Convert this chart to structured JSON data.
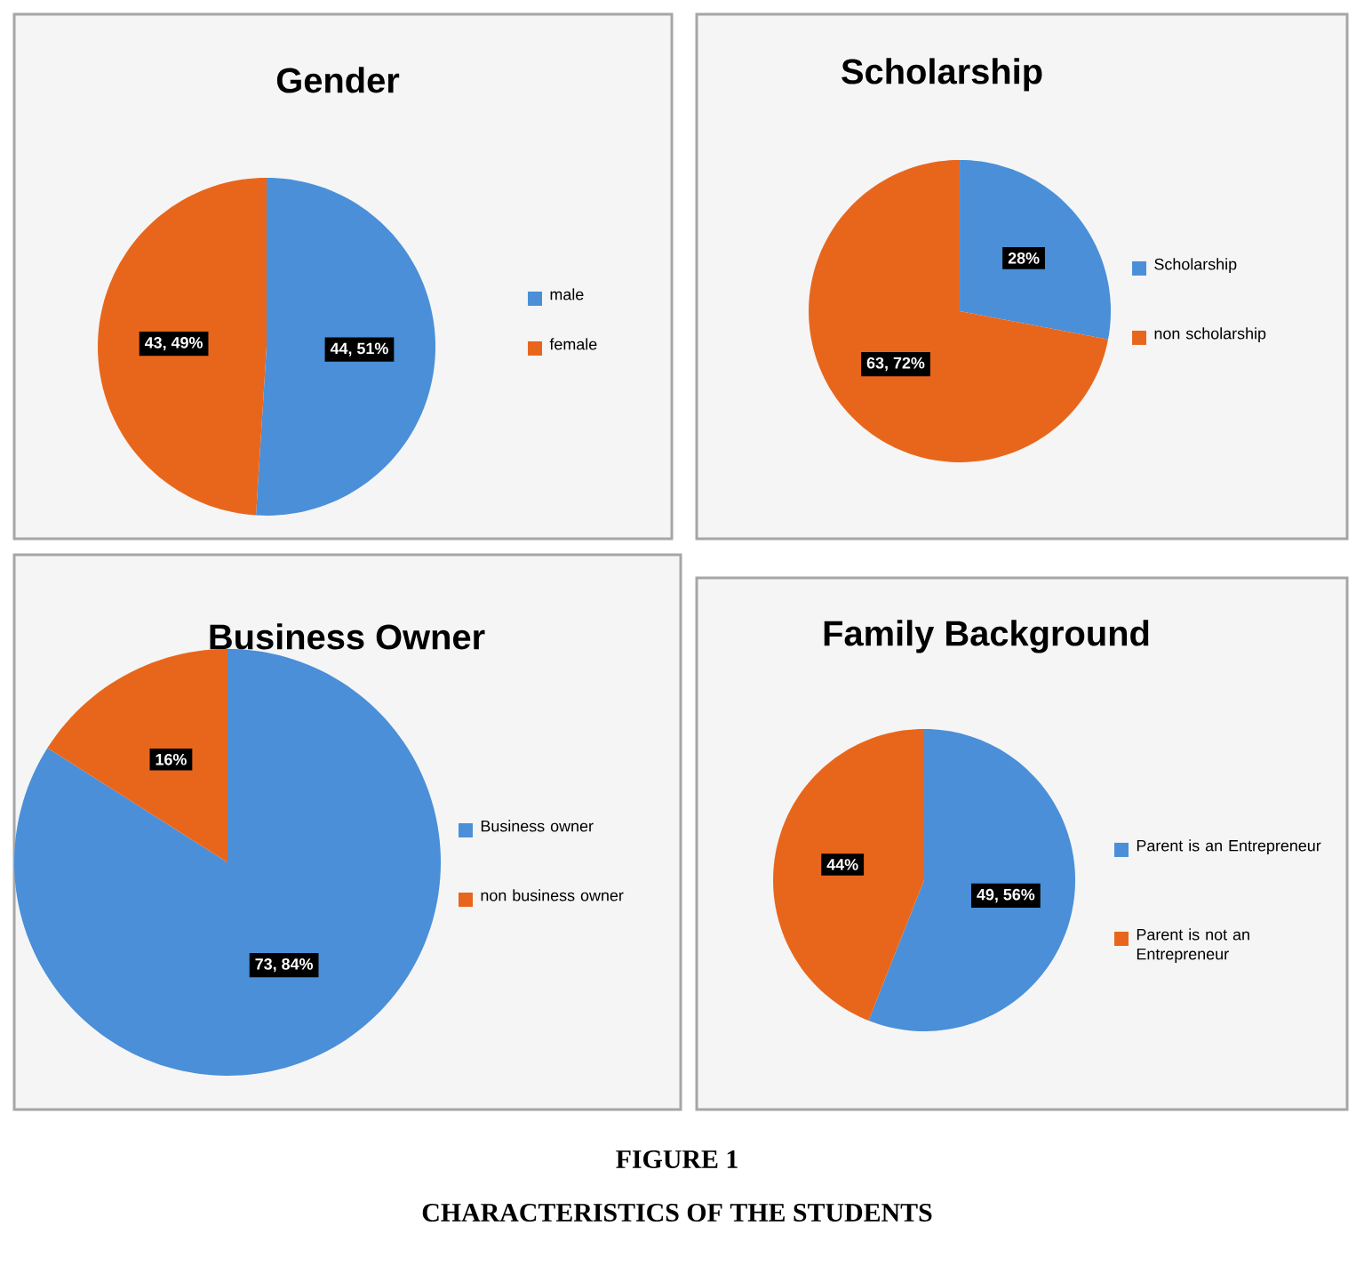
{
  "chart_data": [
    {
      "type": "pie",
      "title": "Gender",
      "categories": [
        "male",
        "female"
      ],
      "values": [
        51,
        49
      ],
      "colors": [
        "#4a8fd8",
        "#e8661c"
      ],
      "value_labels": [
        "44, 51%",
        "43, 49%"
      ],
      "legend": "right"
    },
    {
      "type": "pie",
      "title": "Scholarship",
      "categories": [
        "Scholarship",
        "non scholarship"
      ],
      "values": [
        28,
        72
      ],
      "colors": [
        "#4a8fd8",
        "#e8661c"
      ],
      "value_labels": [
        "28%",
        "63, 72%"
      ],
      "legend": "right"
    },
    {
      "type": "pie",
      "title": "Business Owner",
      "categories": [
        "Business owner",
        "non business owner"
      ],
      "values": [
        84,
        16
      ],
      "colors": [
        "#4a8fd8",
        "#e8661c"
      ],
      "value_labels": [
        "73, 84%",
        "16%"
      ],
      "legend": "right"
    },
    {
      "type": "pie",
      "title": "Family Background",
      "categories": [
        "Parent is an Entrepreneur",
        "Parent is not an Entrepreneur"
      ],
      "values": [
        56,
        44
      ],
      "colors": [
        "#4a8fd8",
        "#e8661c"
      ],
      "value_labels": [
        "49, 56%",
        "44%"
      ],
      "legend": "right",
      "annotations": [
        "FIGURE 1",
        "CHARACTERISTICS OF THE STUDENTS"
      ]
    }
  ]
}
